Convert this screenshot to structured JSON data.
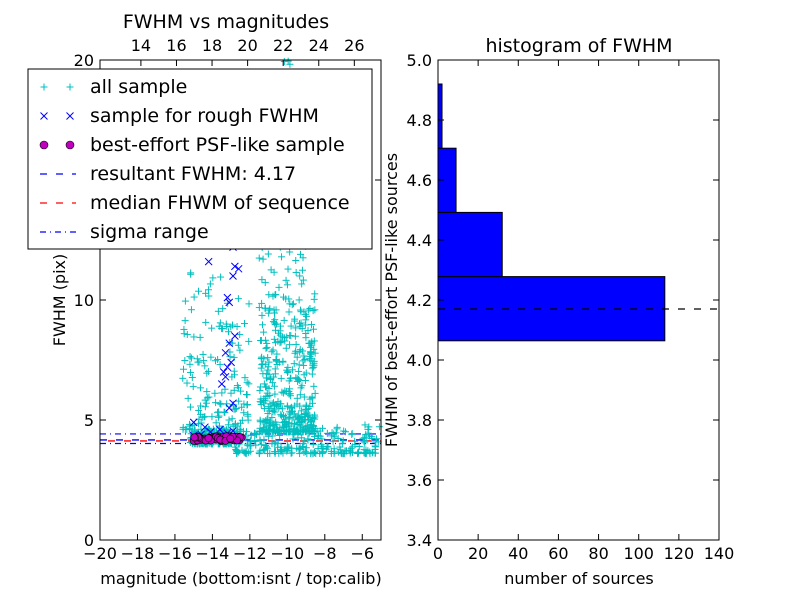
{
  "chart_data": [
    {
      "type": "scatter",
      "title": "FWHM vs magnitudes",
      "xlabel": "magnitude (bottom:isnt / top:calib)",
      "ylabel": "FWHM (pix)",
      "xlim": [
        -20,
        -5
      ],
      "ylim": [
        0,
        20
      ],
      "x_ticks": [
        "−20",
        "−18",
        "−16",
        "−14",
        "−12",
        "−10",
        "−8",
        "−6"
      ],
      "y_ticks": [
        "0",
        "5",
        "10",
        "15",
        "20"
      ],
      "top_axis": {
        "xlim": [
          11.7,
          27.5
        ],
        "ticks": [
          "14",
          "16",
          "18",
          "20",
          "22",
          "24",
          "26"
        ]
      },
      "legend_position": "upper-left",
      "legend": [
        {
          "label": "all sample",
          "marker": "+",
          "color": "#00bfbf"
        },
        {
          "label": "sample for rough FWHM",
          "marker": "x",
          "color": "#0000ff"
        },
        {
          "label": "best-effort PSF-like sample",
          "marker": "o",
          "color": "#bf00bf"
        },
        {
          "label": "resultant FWHM: 4.17",
          "line": "dashed",
          "color": "#0000ff"
        },
        {
          "label": "median FHWM of sequence",
          "line": "dashed",
          "color": "#ff0000"
        },
        {
          "label": "sigma range",
          "line": "dashdot",
          "color": "#0000ff"
        }
      ],
      "hlines": {
        "resultant_fwhm": 4.17,
        "median_fwhm": 4.17,
        "sigma_range": [
          4.02,
          4.42
        ]
      },
      "series": [
        {
          "name": "all sample",
          "marker": "+",
          "color": "#00bfbf",
          "clusters": [
            {
              "x": [
                -15.2,
                -12.5
              ],
              "y": [
                4.0,
                4.6
              ],
              "n": 180
            },
            {
              "x": [
                -12.8,
                -5.0
              ],
              "y": [
                3.6,
                4.8
              ],
              "n": 220
            },
            {
              "x": [
                -15.6,
                -13.5
              ],
              "y": [
                4.6,
                11.5
              ],
              "n": 90
            },
            {
              "x": [
                -13.5,
                -12.0
              ],
              "y": [
                4.5,
                10.5
              ],
              "n": 70
            },
            {
              "x": [
                -11.5,
                -8.5
              ],
              "y": [
                4.5,
                9.5
              ],
              "n": 380
            },
            {
              "x": [
                -11.5,
                -8.5
              ],
              "y": [
                9.5,
                20.0
              ],
              "n": 110
            }
          ]
        },
        {
          "name": "sample for rough FWHM",
          "marker": "x",
          "color": "#0000ff",
          "points": [
            [
              -15.0,
              4.35
            ],
            [
              -14.6,
              4.4
            ],
            [
              -14.1,
              4.5
            ],
            [
              -13.6,
              4.6
            ],
            [
              -13.2,
              4.45
            ],
            [
              -12.9,
              4.55
            ],
            [
              -13.1,
              5.5
            ],
            [
              -12.9,
              5.7
            ],
            [
              -13.5,
              6.5
            ],
            [
              -13.3,
              6.8
            ],
            [
              -13.4,
              7.0
            ],
            [
              -13.2,
              7.2
            ],
            [
              -13.0,
              7.4
            ],
            [
              -13.3,
              7.8
            ],
            [
              -13.1,
              8.2
            ],
            [
              -12.8,
              8.5
            ],
            [
              -13.2,
              10.1
            ],
            [
              -13.1,
              9.9
            ],
            [
              -12.9,
              11.0
            ],
            [
              -12.6,
              11.3
            ],
            [
              -12.8,
              11.4
            ],
            [
              -12.9,
              12.2
            ],
            [
              -14.2,
              11.6
            ],
            [
              -15.0,
              4.9
            ],
            [
              -14.4,
              4.7
            ]
          ]
        },
        {
          "name": "best-effort PSF-like sample",
          "marker": "o",
          "color": "#bf00bf",
          "x_range": [
            -15.0,
            -12.4
          ],
          "y_range": [
            4.12,
            4.32
          ],
          "n": 55
        }
      ]
    },
    {
      "type": "bar",
      "orientation": "horizontal",
      "title": "histogram of FWHM",
      "xlabel": "number of sources",
      "ylabel": "FWHM of best-effort PSF-like sources",
      "xlim": [
        0,
        140
      ],
      "ylim": [
        3.4,
        5.0
      ],
      "x_ticks": [
        "0",
        "20",
        "40",
        "60",
        "80",
        "100",
        "120",
        "140"
      ],
      "y_ticks": [
        "3.4",
        "3.6",
        "3.8",
        "4.0",
        "4.2",
        "4.4",
        "4.6",
        "4.8",
        "5.0"
      ],
      "color": "#0000ff",
      "bins": [
        {
          "low": 4.064,
          "high": 4.278,
          "count": 113
        },
        {
          "low": 4.278,
          "high": 4.492,
          "count": 32
        },
        {
          "low": 4.492,
          "high": 4.706,
          "count": 9
        },
        {
          "low": 4.706,
          "high": 4.92,
          "count": 2
        }
      ],
      "hline": {
        "value": 4.17,
        "style": "dashed",
        "color": "#000000"
      }
    }
  ]
}
